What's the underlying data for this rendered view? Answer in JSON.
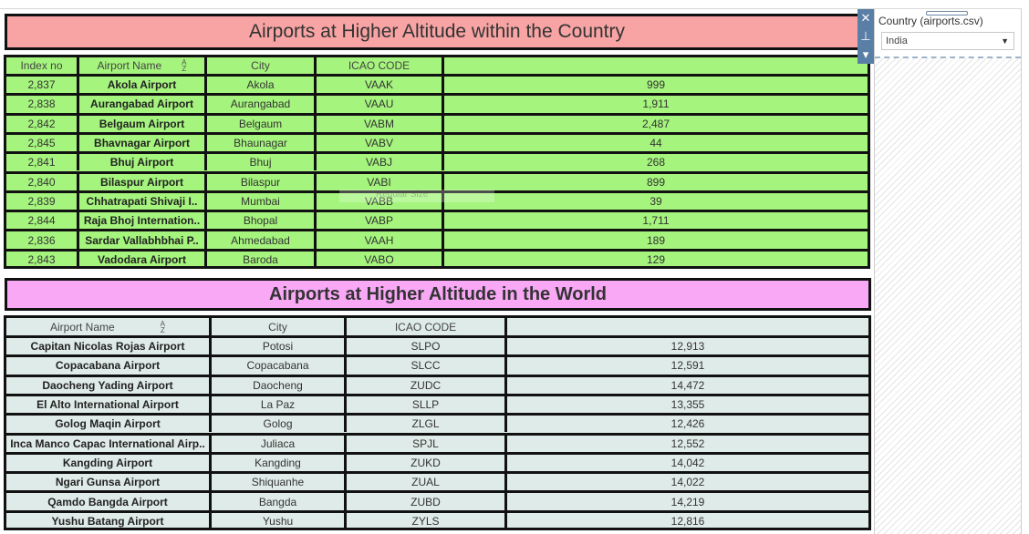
{
  "country_table": {
    "title": "Airports at Higher Altitude within the Country",
    "columns": [
      "Index no",
      "Airport Name",
      "City",
      "ICAO CODE",
      ""
    ],
    "rows": [
      [
        "2,837",
        "Akola Airport",
        "Akola",
        "VAAK",
        "999"
      ],
      [
        "2,838",
        "Aurangabad Airport",
        "Aurangabad",
        "VAAU",
        "1,911"
      ],
      [
        "2,842",
        "Belgaum Airport",
        "Belgaum",
        "VABM",
        "2,487"
      ],
      [
        "2,845",
        "Bhavnagar Airport",
        "Bhaunagar",
        "VABV",
        "44"
      ],
      [
        "2,841",
        "Bhuj Airport",
        "Bhuj",
        "VABJ",
        "268"
      ],
      [
        "2,840",
        "Bilaspur Airport",
        "Bilaspur",
        "VABI",
        "899"
      ],
      [
        "2,839",
        "Chhatrapati Shivaji I..",
        "Mumbai",
        "VABB",
        "39"
      ],
      [
        "2,844",
        "Raja Bhoj Internation..",
        "Bhopal",
        "VABP",
        "1,711"
      ],
      [
        "2,836",
        "Sardar Vallabhbhai P..",
        "Ahmedabad",
        "VAAH",
        "189"
      ],
      [
        "2,843",
        "Vadodara Airport",
        "Baroda",
        "VABO",
        "129"
      ]
    ],
    "ghost_text": "Regular Size"
  },
  "world_table": {
    "title": "Airports at Higher Altitude in the World",
    "columns": [
      "Airport Name",
      "City",
      "ICAO CODE",
      ""
    ],
    "rows": [
      [
        "Capitan Nicolas Rojas Airport",
        "Potosi",
        "SLPO",
        "12,913"
      ],
      [
        "Copacabana Airport",
        "Copacabana",
        "SLCC",
        "12,591"
      ],
      [
        "Daocheng Yading Airport",
        "Daocheng",
        "ZUDC",
        "14,472"
      ],
      [
        "El Alto International Airport",
        "La Paz",
        "SLLP",
        "13,355"
      ],
      [
        "Golog Maqin Airport",
        "Golog",
        "ZLGL",
        "12,426"
      ],
      [
        "Inca Manco Capac International Airp..",
        "Juliaca",
        "SPJL",
        "12,552"
      ],
      [
        "Kangding Airport",
        "Kangding",
        "ZUKD",
        "14,042"
      ],
      [
        "Ngari Gunsa Airport",
        "Shiquanhe",
        "ZUAL",
        "14,022"
      ],
      [
        "Qamdo Bangda Airport",
        "Bangda",
        "ZUBD",
        "14,219"
      ],
      [
        "Yushu Batang Airport",
        "Yushu",
        "ZYLS",
        "12,816"
      ]
    ]
  },
  "filter": {
    "title": "Country (airports.csv)",
    "value": "India"
  },
  "icons": {
    "sort": "sort-az-icon",
    "close": "close-icon",
    "pin": "pin-icon",
    "menu": "chevron-down-icon"
  },
  "colors": {
    "country_title_bg": "#f8a4a4",
    "country_table_bg": "#a5f47d",
    "world_title_bg": "#f9a8f6",
    "world_table_bg": "#dfebe8"
  }
}
